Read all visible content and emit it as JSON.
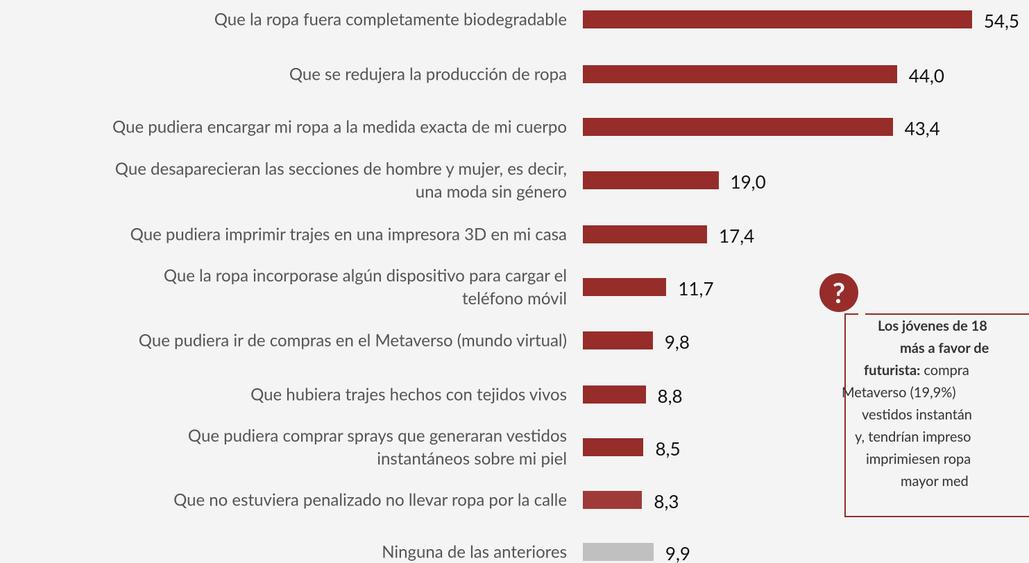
{
  "chart_data": {
    "type": "bar",
    "orientation": "horizontal",
    "categories": [
      "Que la ropa fuera completamente biodegradable",
      "Que se redujera la producción de ropa",
      "Que pudiera encargar mi ropa a la medida exacta de mi cuerpo",
      "Que desaparecieran las secciones de hombre y mujer, es decir,\nuna moda sin género",
      "Que pudiera imprimir trajes en una impresora 3D en mi casa",
      "Que la ropa incorporase algún dispositivo para cargar el\nteléfono móvil",
      "Que pudiera ir de compras en el Metaverso (mundo virtual)",
      "Que hubiera trajes hechos con tejidos vivos",
      "Que pudiera comprar sprays que generaran vestidos\ninstantáneos sobre mi piel",
      "Que no estuviera penalizado no llevar ropa por la calle",
      "Ninguna de las anteriores"
    ],
    "values": [
      54.5,
      44.0,
      43.4,
      19.0,
      17.4,
      11.7,
      9.8,
      8.8,
      8.5,
      8.3,
      9.9
    ],
    "value_labels": [
      "54,5",
      "44,0",
      "43,4",
      "19,0",
      "17,4",
      "11,7",
      "9,8",
      "8,8",
      "8,5",
      "8,3",
      "9,9"
    ],
    "colors": [
      "#962d2a",
      "#962d2a",
      "#962d2a",
      "#962d2a",
      "#962d2a",
      "#962d2a",
      "#962d2a",
      "#962d2a",
      "#962d2a",
      "#9e3b38",
      "#c0c0c0"
    ],
    "xlim": [
      0,
      55
    ]
  },
  "annotation": {
    "icon": "?",
    "lines": [
      {
        "bold": "Los jóvenes de 18"
      },
      {
        "bold": "más a favor de"
      },
      {
        "bold": "futurista:",
        "text": "compra"
      },
      {
        "text": "Metaverso (19,9%)"
      },
      {
        "text": "vestidos instantán"
      },
      {
        "text": "y, tendrían impreso"
      },
      {
        "text": "imprimiesen ropa"
      },
      {
        "text": "mayor med"
      }
    ]
  }
}
